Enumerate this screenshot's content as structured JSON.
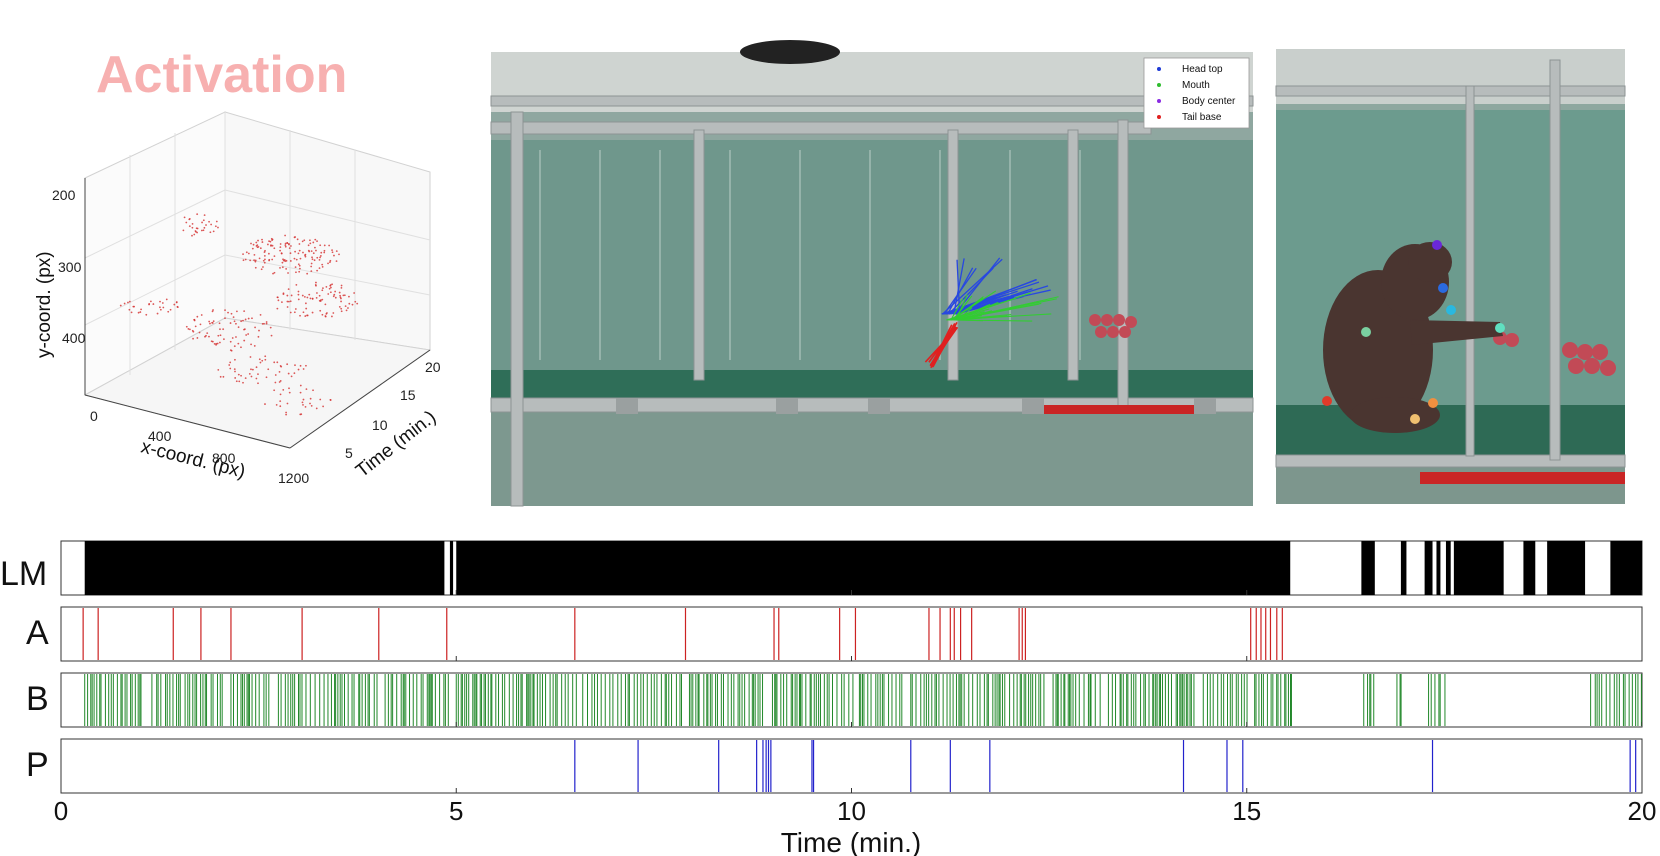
{
  "title_3d": "Activation",
  "chart_data": [
    {
      "type": "scatter",
      "projection": "3d",
      "title": "Activation",
      "xlabel": "x-coord. (px)",
      "ylabel": "y-coord. (px)",
      "zlabel": "Time (min.)",
      "x_ticks": [
        "0",
        "400",
        "800",
        "1200"
      ],
      "y_ticks": [
        "200",
        "300",
        "400"
      ],
      "z_ticks": [
        "5",
        "10",
        "15",
        "20"
      ],
      "xlim": [
        0,
        1200
      ],
      "ylim": [
        200,
        450
      ],
      "zlim": [
        0,
        20
      ],
      "grid": true,
      "series_color": "#d43030"
    },
    {
      "type": "event-raster",
      "xlabel": "Time (min.)",
      "x_ticks": [
        "0",
        "5",
        "10",
        "15",
        "20"
      ],
      "xlim": [
        0,
        20
      ],
      "rows": [
        {
          "name": "LM",
          "color": "#000000",
          "mode": "intervals",
          "intervals": [
            [
              0.3,
              4.85
            ],
            [
              4.92,
              4.96
            ],
            [
              5.0,
              15.55
            ],
            [
              16.45,
              16.62
            ],
            [
              16.95,
              17.02
            ],
            [
              17.25,
              17.35
            ],
            [
              17.4,
              17.45
            ],
            [
              17.52,
              17.58
            ],
            [
              17.62,
              18.25
            ],
            [
              18.5,
              18.65
            ],
            [
              18.8,
              19.28
            ],
            [
              19.6,
              20.0
            ]
          ]
        },
        {
          "name": "A",
          "color": "#cc2222",
          "mode": "events",
          "events": [
            0.28,
            0.47,
            1.42,
            1.77,
            2.15,
            3.05,
            4.02,
            4.88,
            6.5,
            7.9,
            9.02,
            9.08,
            9.85,
            10.05,
            10.98,
            11.12,
            11.25,
            11.3,
            11.38,
            11.52,
            12.12,
            12.16,
            12.2,
            15.05,
            15.12,
            15.18,
            15.24,
            15.3,
            15.38,
            15.45
          ]
        },
        {
          "name": "B",
          "color": "#22882a",
          "mode": "events",
          "density": "dense clusters",
          "clusters": [
            [
              0.3,
              1.05
            ],
            [
              1.15,
              2.05
            ],
            [
              2.15,
              2.65
            ],
            [
              2.75,
              4.05
            ],
            [
              4.1,
              4.9
            ],
            [
              5.0,
              6.55
            ],
            [
              6.6,
              7.85
            ],
            [
              7.95,
              8.9
            ],
            [
              9.0,
              10.05
            ],
            [
              10.1,
              10.65
            ],
            [
              10.75,
              12.45
            ],
            [
              12.55,
              13.15
            ],
            [
              13.25,
              14.35
            ],
            [
              14.45,
              15.05
            ],
            [
              15.1,
              15.58
            ],
            [
              16.48,
              16.62
            ],
            [
              16.9,
              17.0
            ],
            [
              17.3,
              17.55
            ],
            [
              19.35,
              20.0
            ]
          ]
        },
        {
          "name": "P",
          "color": "#2222cc",
          "mode": "events",
          "events": [
            6.5,
            7.3,
            8.32,
            8.8,
            8.88,
            8.92,
            8.95,
            8.98,
            9.5,
            9.52,
            10.75,
            11.25,
            11.75,
            14.2,
            14.75,
            14.95,
            17.35,
            19.85,
            19.92
          ]
        }
      ]
    }
  ],
  "video_legend": {
    "items": [
      {
        "label": "Head top",
        "color": "#1f3bd6"
      },
      {
        "label": "Mouth",
        "color": "#2fbd2f"
      },
      {
        "label": "Body center",
        "color": "#8a2be2"
      },
      {
        "label": "Tail base",
        "color": "#e02020"
      }
    ]
  },
  "pose_colors": {
    "head": "#6a28d8",
    "ear": "#2a6ae0",
    "hand": "#2ab8e0",
    "body": "#7ad0a0",
    "paw": "#60e0c0",
    "tail": "#e03a2a",
    "foot1": "#f09040",
    "foot2": "#f0c070"
  }
}
